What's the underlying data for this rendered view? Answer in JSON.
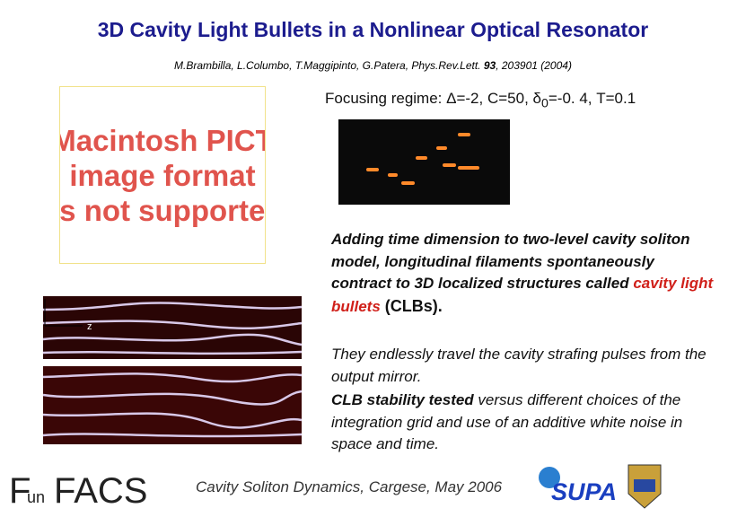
{
  "slide": {
    "title": "3D Cavity Light Bullets in a Nonlinear Optical Resonator",
    "citation": {
      "before": "M.Brambilla, L.Columbo, T.Maggipinto, G.Patera, Phys.Rev.Lett. ",
      "volume": "93",
      "after": ", 203901 (2004)"
    },
    "placeholder": {
      "lines": [
        "Macintosh PICT",
        "image format",
        "is not supported"
      ]
    },
    "regime": {
      "before": "Focusing regime: Δ=-2, C=50, δ",
      "sub": "0",
      "after": "=-0. 4, T=0.1"
    },
    "axis_label": "z",
    "paragraph1": {
      "text": "Adding time dimension to two-level cavity soliton model, longitudinal filaments spontaneously contract to 3D localized structures called ",
      "highlight": "cavity light bullets",
      "tail": " (CLBs)."
    },
    "paragraph2": "They endlessly travel the cavity strafing pulses from the output mirror.",
    "paragraph3": {
      "bold": "CLB stability tested",
      "rest": " versus different choices of the integration grid and use of an additive white noise in space and time."
    },
    "footer": "Cavity Soliton Dynamics, Cargese, May 2006",
    "logos": {
      "fun_f": "F",
      "fun_un": "un",
      "facs": "FACS",
      "supa": "SUPA"
    }
  }
}
